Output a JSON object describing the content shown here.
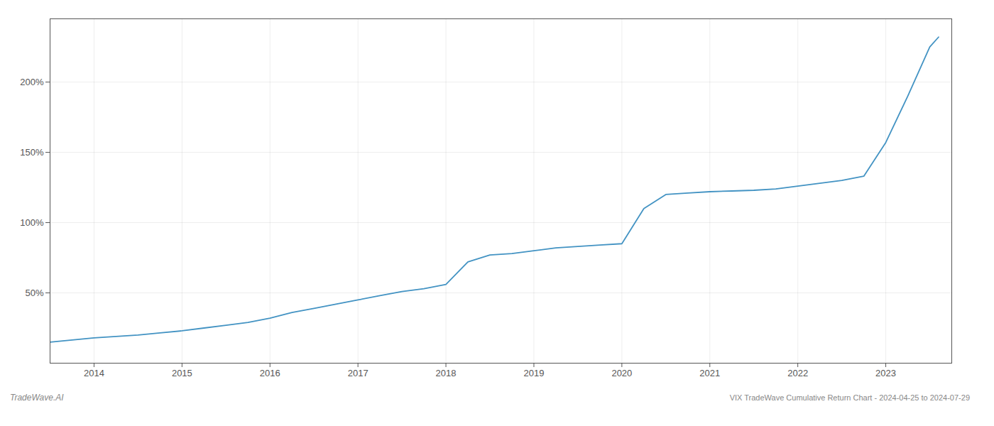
{
  "chart_data": {
    "type": "line",
    "title": "VIX TradeWave Cumulative Return Chart - 2024-04-25 to 2024-07-29",
    "annotations": [
      "TradeWave.AI"
    ],
    "x": [
      2013.5,
      2013.75,
      2014.0,
      2014.25,
      2014.5,
      2014.75,
      2015.0,
      2015.25,
      2015.5,
      2015.75,
      2016.0,
      2016.25,
      2016.5,
      2016.75,
      2017.0,
      2017.25,
      2017.5,
      2017.75,
      2018.0,
      2018.25,
      2018.5,
      2018.75,
      2019.0,
      2019.25,
      2019.5,
      2019.75,
      2020.0,
      2020.25,
      2020.5,
      2020.75,
      2021.0,
      2021.25,
      2021.5,
      2021.75,
      2022.0,
      2022.25,
      2022.5,
      2022.75,
      2023.0,
      2023.25,
      2023.5,
      2023.6
    ],
    "values": [
      15,
      16.5,
      18,
      19,
      20,
      21.5,
      23,
      25,
      27,
      29,
      32,
      36,
      39,
      42,
      45,
      48,
      51,
      53,
      56,
      72,
      77,
      78,
      80,
      82,
      83,
      84,
      85,
      110,
      120,
      121,
      122,
      122.5,
      123,
      124,
      126,
      128,
      130,
      133,
      157,
      190,
      225,
      232
    ],
    "color": "#4393c3",
    "xlim": [
      2013.5,
      2023.75
    ],
    "ylim": [
      0,
      245
    ],
    "xticks": [
      2014,
      2015,
      2016,
      2017,
      2018,
      2019,
      2020,
      2021,
      2022,
      2023
    ],
    "yticks": [
      {
        "value": 50,
        "label": "50%"
      },
      {
        "value": 100,
        "label": "100%"
      },
      {
        "value": 150,
        "label": "150%"
      },
      {
        "value": 200,
        "label": "200%"
      }
    ],
    "grid": true
  }
}
